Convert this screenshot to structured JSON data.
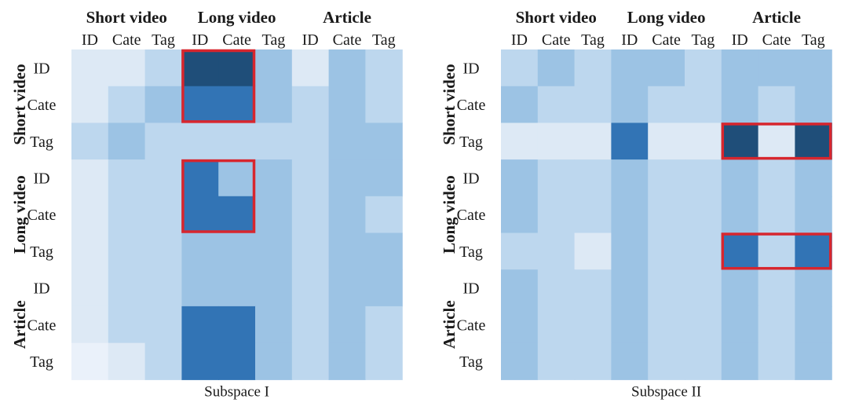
{
  "chart_data": [
    {
      "type": "heatmap",
      "caption": "Subspace I",
      "group_labels": [
        "Short video",
        "Long video",
        "Article"
      ],
      "sub_labels": [
        "ID",
        "Cate",
        "Tag"
      ],
      "levels": [
        [
          1,
          1,
          2,
          5,
          5,
          3,
          1,
          3,
          2
        ],
        [
          1,
          2,
          3,
          4,
          4,
          3,
          2,
          3,
          2
        ],
        [
          2,
          3,
          2,
          2,
          2,
          2,
          2,
          3,
          3
        ],
        [
          1,
          2,
          2,
          4,
          3,
          3,
          2,
          3,
          3
        ],
        [
          1,
          2,
          2,
          4,
          4,
          3,
          2,
          3,
          2
        ],
        [
          1,
          2,
          2,
          3,
          3,
          3,
          2,
          3,
          3
        ],
        [
          1,
          2,
          2,
          3,
          3,
          3,
          2,
          3,
          3
        ],
        [
          1,
          2,
          2,
          4,
          4,
          3,
          2,
          3,
          2
        ],
        [
          0,
          1,
          2,
          4,
          4,
          3,
          2,
          3,
          2
        ]
      ],
      "highlights": [
        [
          0,
          3,
          1,
          4
        ],
        [
          3,
          3,
          4,
          4
        ]
      ],
      "highlight_color": "#d7262e"
    },
    {
      "type": "heatmap",
      "caption": "Subspace II",
      "group_labels": [
        "Short video",
        "Long video",
        "Article"
      ],
      "sub_labels": [
        "ID",
        "Cate",
        "Tag"
      ],
      "levels": [
        [
          2,
          3,
          2,
          3,
          3,
          2,
          3,
          3,
          3
        ],
        [
          3,
          2,
          2,
          3,
          2,
          2,
          3,
          2,
          3
        ],
        [
          1,
          1,
          1,
          4,
          1,
          1,
          5,
          1,
          5
        ],
        [
          3,
          2,
          2,
          3,
          2,
          2,
          3,
          2,
          3
        ],
        [
          3,
          2,
          2,
          3,
          2,
          2,
          3,
          2,
          3
        ],
        [
          2,
          2,
          1,
          3,
          2,
          2,
          4,
          2,
          4
        ],
        [
          3,
          2,
          2,
          3,
          2,
          2,
          3,
          2,
          3
        ],
        [
          3,
          2,
          2,
          3,
          2,
          2,
          3,
          2,
          3
        ],
        [
          3,
          2,
          2,
          3,
          2,
          2,
          3,
          2,
          3
        ]
      ],
      "highlights": [
        [
          2,
          6,
          2,
          8
        ],
        [
          5,
          6,
          5,
          8
        ]
      ],
      "highlight_color": "#d7262e"
    }
  ],
  "palette": [
    "#eaf1fa",
    "#dde9f5",
    "#bdd7ee",
    "#9cc3e4",
    "#3274b5",
    "#1f4e79"
  ]
}
